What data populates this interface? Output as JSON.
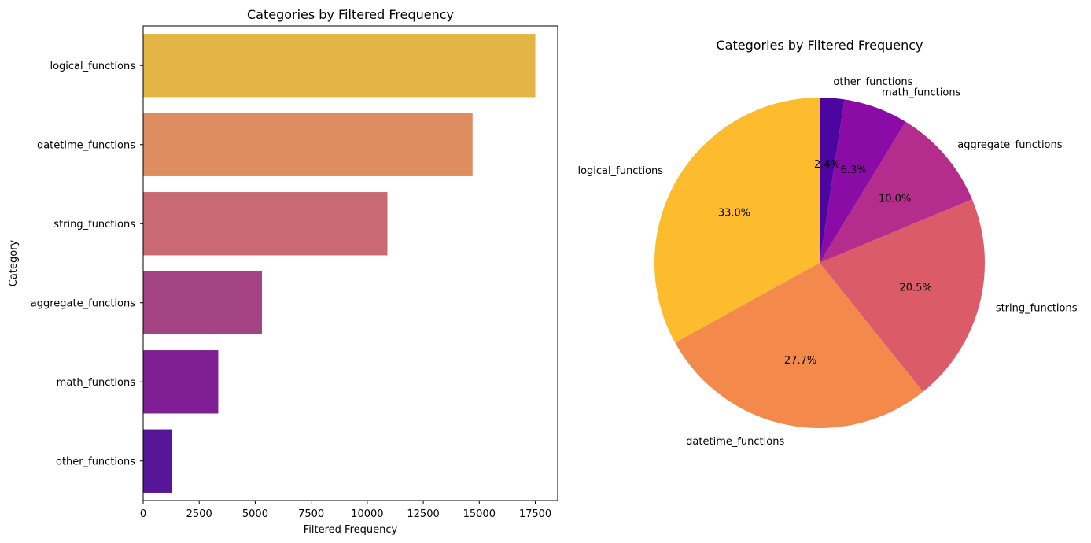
{
  "chart_data": [
    {
      "type": "bar",
      "orientation": "horizontal",
      "title": "Categories by Filtered Frequency",
      "xlabel": "Filtered Frequency",
      "ylabel": "Category",
      "xlim": [
        0,
        18500
      ],
      "xticks": [
        0,
        2500,
        5000,
        7500,
        10000,
        12500,
        15000,
        17500
      ],
      "categories": [
        "logical_functions",
        "datetime_functions",
        "string_functions",
        "aggregate_functions",
        "math_functions",
        "other_functions"
      ],
      "values": [
        17500,
        14700,
        10900,
        5300,
        3350,
        1300
      ],
      "colors": [
        "#e3b446",
        "#dd8d60",
        "#c96a73",
        "#a54484",
        "#7f1d93",
        "#551797"
      ]
    },
    {
      "type": "pie",
      "title": "Categories by Filtered Frequency",
      "labels": [
        "logical_functions",
        "datetime_functions",
        "string_functions",
        "aggregate_functions",
        "math_functions",
        "other_functions"
      ],
      "percent_labels": [
        "33.0%",
        "27.7%",
        "20.5%",
        "10.0%",
        "6.3%",
        "2.4%"
      ],
      "values": [
        33.0,
        27.7,
        20.5,
        10.0,
        6.3,
        2.4
      ],
      "colors": [
        "#fdbc2e",
        "#f3894b",
        "#dc5b69",
        "#b42d8c",
        "#8a0ba6",
        "#4c05a1"
      ]
    }
  ]
}
